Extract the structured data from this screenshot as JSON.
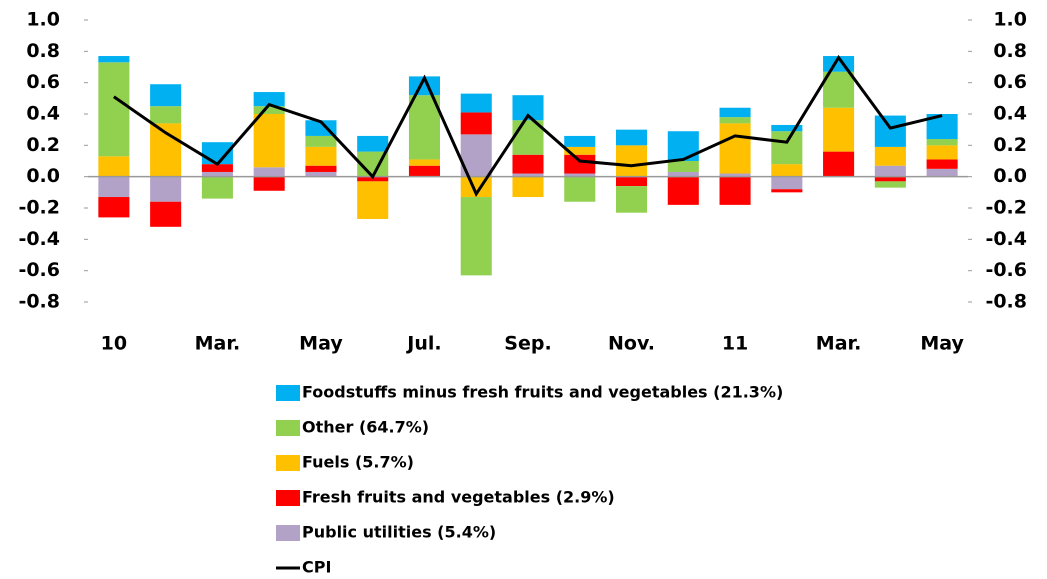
{
  "chart_data": {
    "type": "bar",
    "categories": [
      "10",
      null,
      "Mar.",
      null,
      "May",
      null,
      "Jul.",
      null,
      "Sep.",
      null,
      "Nov.",
      null,
      "11",
      null,
      "Mar.",
      null,
      "May"
    ],
    "stacked": true,
    "series": [
      {
        "name": "Foodstuffs minus fresh fruits and vegetables (21.3%)",
        "color": "#00b0f0",
        "values": [
          0.04,
          0.14,
          0.14,
          0.09,
          0.1,
          0.1,
          0.12,
          0.12,
          0.16,
          0.07,
          0.1,
          0.19,
          0.06,
          0.04,
          0.1,
          0.2,
          0.16
        ]
      },
      {
        "name": "Other (64.7%)",
        "color": "#92d050",
        "values": [
          0.6,
          0.11,
          -0.14,
          0.05,
          0.07,
          0.16,
          0.41,
          -0.5,
          0.22,
          -0.16,
          -0.17,
          0.07,
          0.04,
          0.21,
          0.23,
          -0.04,
          0.04
        ]
      },
      {
        "name": "Fuels (5.7%)",
        "color": "#ffc000",
        "values": [
          0.13,
          0.34,
          0,
          0.34,
          0.12,
          -0.24,
          0.04,
          -0.13,
          -0.13,
          0.05,
          0.2,
          0,
          0.32,
          0.08,
          0.28,
          0.12,
          0.09
        ]
      },
      {
        "name": "Fresh fruits and vegetables (2.9%)",
        "color": "#ff0000",
        "values": [
          -0.13,
          -0.16,
          0.05,
          -0.09,
          0.04,
          -0.03,
          0.07,
          0.14,
          0.12,
          0.12,
          -0.06,
          -0.18,
          -0.18,
          -0.02,
          0.16,
          -0.03,
          0.06
        ]
      },
      {
        "name": "Public utilities (5.4%)",
        "color": "#b3a2c7",
        "values": [
          -0.13,
          -0.16,
          0.03,
          0.06,
          0.03,
          0,
          0,
          0.27,
          0.02,
          0.02,
          0,
          0.03,
          0.02,
          -0.08,
          0,
          0.07,
          0.05
        ]
      },
      {
        "name": "CPI",
        "color": "#000000",
        "type": "line",
        "axis": "y2",
        "values": [
          0.51,
          0.28,
          0.08,
          0.46,
          0.35,
          0.0,
          0.63,
          -0.11,
          0.39,
          0.1,
          0.07,
          0.11,
          0.26,
          0.22,
          0.76,
          0.31,
          0.39
        ]
      }
    ],
    "ylim": [
      -0.8,
      1.0
    ],
    "yticks": [
      {
        "value": 1.0,
        "label": "1.0"
      },
      0.8,
      0.6,
      0.4,
      0.2,
      {
        "value": 0,
        "label": "0.0"
      },
      -0.2,
      -0.4,
      -0.6,
      -0.8
    ],
    "y2lim": [
      -0.8,
      1.0
    ],
    "y2ticks": [
      {
        "value": 1.0,
        "label": "1.0"
      },
      0.8,
      0.6,
      0.4,
      0.2,
      {
        "value": 0,
        "label": "0.0"
      },
      -0.2,
      -0.4,
      -0.6,
      -0.8
    ],
    "grid": false
  }
}
